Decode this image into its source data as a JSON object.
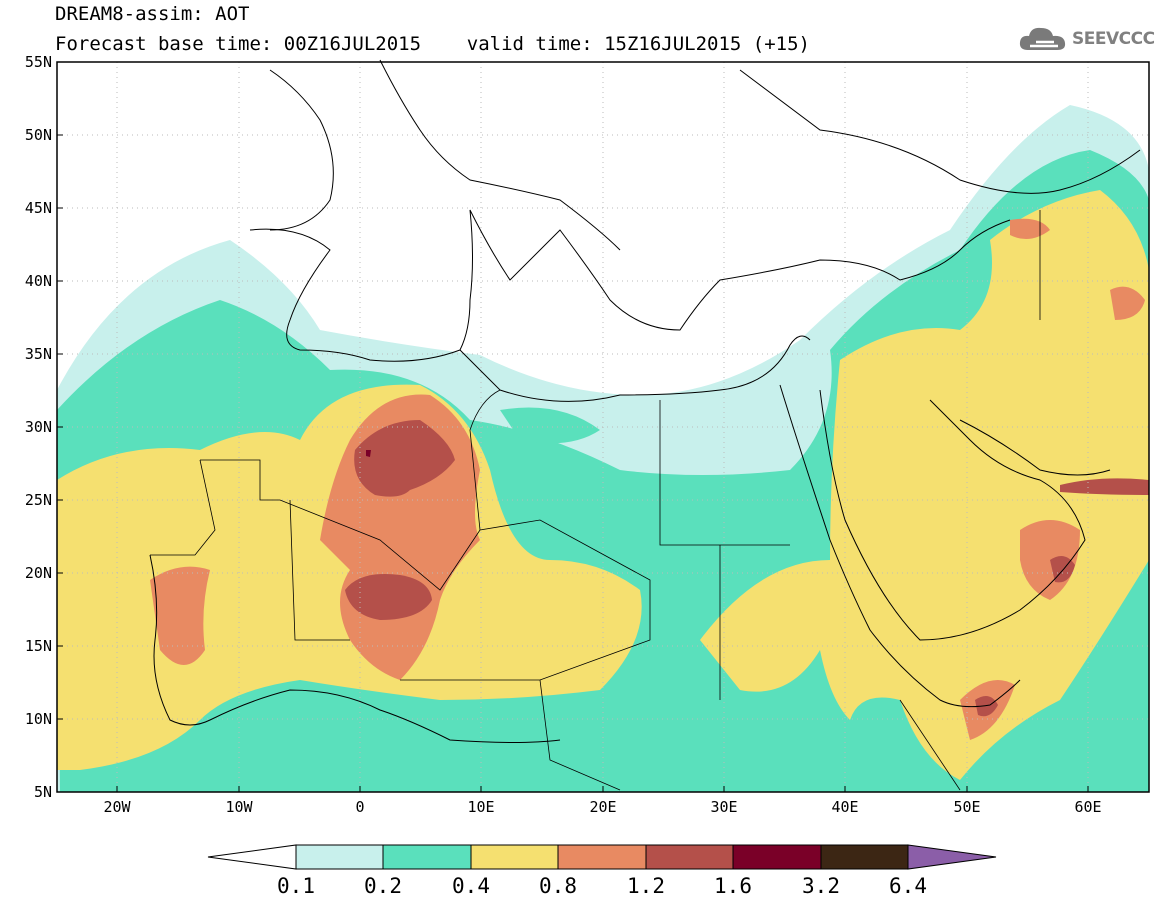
{
  "header": {
    "title": "DREAM8-assim: AOT",
    "subtitle": "Forecast base time: 00Z16JUL2015    valid time: 15Z16JUL2015 (+15)"
  },
  "logo": {
    "text": "SEEVCCC",
    "icon": "cloud-icon"
  },
  "map": {
    "lat_ticks": [
      "55N",
      "50N",
      "45N",
      "40N",
      "35N",
      "30N",
      "25N",
      "20N",
      "15N",
      "10N",
      "5N"
    ],
    "lon_ticks": [
      "20W",
      "10W",
      "0",
      "10E",
      "20E",
      "30E",
      "40E",
      "50E",
      "60E"
    ],
    "extent": {
      "lon": [
        -25,
        65
      ],
      "lat": [
        5,
        55
      ]
    },
    "grid": "dotted"
  },
  "colorbar": {
    "labels": [
      "0.1",
      "0.2",
      "0.4",
      "0.8",
      "1.2",
      "1.6",
      "3.2",
      "6.4"
    ],
    "colors": [
      "#ffffff",
      "#c8f0ec",
      "#5ae0bc",
      "#f5e070",
      "#e88a62",
      "#b4504a",
      "#7a0028",
      "#3c2614",
      "#8b5ea8"
    ]
  },
  "palette": {
    "level1": "#c8f0ec",
    "level2": "#5ae0bc",
    "level3": "#f5e070",
    "level4": "#e88a62",
    "level5": "#b4504a",
    "level6": "#7a0028"
  }
}
